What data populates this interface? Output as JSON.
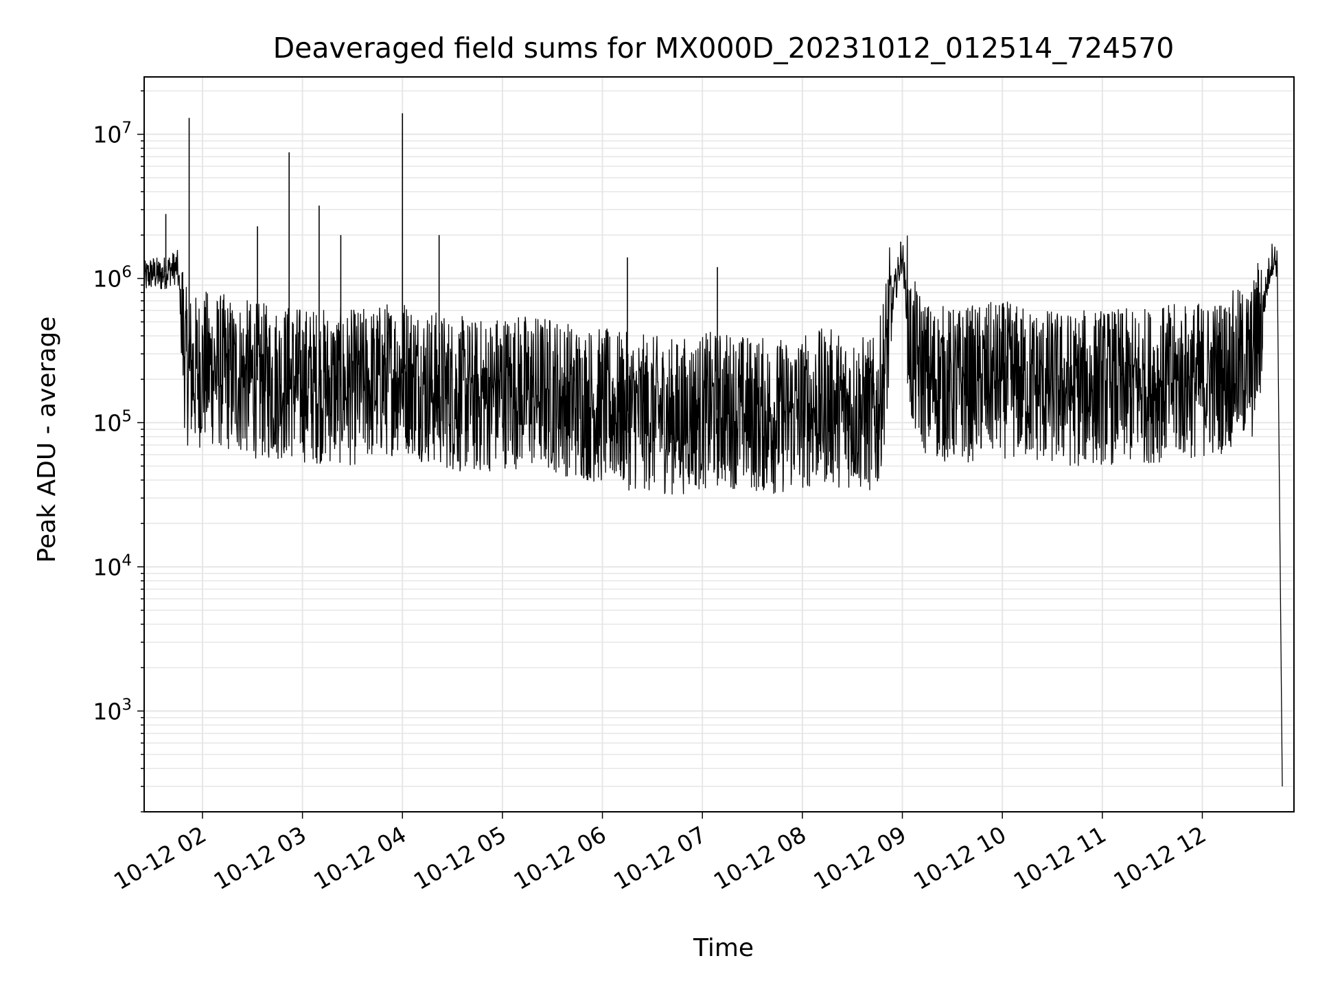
{
  "chart_data": {
    "type": "line",
    "title": "Deaveraged field sums for MX000D_20231012_012514_724570",
    "xlabel": "Time",
    "ylabel": "Peak ADU - average",
    "yscale": "log",
    "ylim": [
      200,
      25000000
    ],
    "xlim": [
      "2023-10-12 01:25",
      "2023-10-12 12:55"
    ],
    "grid": true,
    "grid_color": "#e6e6e6",
    "line_color": "#000000",
    "x_ticks": [
      {
        "value": "2023-10-12 02:00",
        "label": "10-12 02"
      },
      {
        "value": "2023-10-12 03:00",
        "label": "10-12 03"
      },
      {
        "value": "2023-10-12 04:00",
        "label": "10-12 04"
      },
      {
        "value": "2023-10-12 05:00",
        "label": "10-12 05"
      },
      {
        "value": "2023-10-12 06:00",
        "label": "10-12 06"
      },
      {
        "value": "2023-10-12 07:00",
        "label": "10-12 07"
      },
      {
        "value": "2023-10-12 08:00",
        "label": "10-12 08"
      },
      {
        "value": "2023-10-12 09:00",
        "label": "10-12 09"
      },
      {
        "value": "2023-10-12 10:00",
        "label": "10-12 10"
      },
      {
        "value": "2023-10-12 11:00",
        "label": "10-12 11"
      },
      {
        "value": "2023-10-12 12:00",
        "label": "10-12 12"
      }
    ],
    "y_ticks": [
      {
        "value": 1000,
        "base": "10",
        "exp": "3"
      },
      {
        "value": 10000,
        "base": "10",
        "exp": "4"
      },
      {
        "value": 100000,
        "base": "10",
        "exp": "5"
      },
      {
        "value": 1000000,
        "base": "10",
        "exp": "6"
      },
      {
        "value": 10000000,
        "base": "10",
        "exp": "7"
      }
    ],
    "series": [
      {
        "x": [
          "2023-10-12 01:25",
          "2023-10-12 01:30",
          "2023-10-12 01:35",
          "2023-10-12 01:40",
          "2023-10-12 01:45",
          "2023-10-12 01:50",
          "2023-10-12 01:55",
          "2023-10-12 02:00",
          "2023-10-12 02:10",
          "2023-10-12 02:20",
          "2023-10-12 02:30",
          "2023-10-12 02:40",
          "2023-10-12 02:50",
          "2023-10-12 03:00",
          "2023-10-12 03:15",
          "2023-10-12 03:30",
          "2023-10-12 03:45",
          "2023-10-12 04:00",
          "2023-10-12 04:15",
          "2023-10-12 04:30",
          "2023-10-12 04:45",
          "2023-10-12 05:00",
          "2023-10-12 05:15",
          "2023-10-12 05:30",
          "2023-10-12 05:45",
          "2023-10-12 06:00",
          "2023-10-12 06:15",
          "2023-10-12 06:30",
          "2023-10-12 06:45",
          "2023-10-12 07:00",
          "2023-10-12 07:15",
          "2023-10-12 07:30",
          "2023-10-12 07:45",
          "2023-10-12 08:00",
          "2023-10-12 08:15",
          "2023-10-12 08:30",
          "2023-10-12 08:45",
          "2023-10-12 08:55",
          "2023-10-12 09:00",
          "2023-10-12 09:05",
          "2023-10-12 09:15",
          "2023-10-12 09:30",
          "2023-10-12 09:45",
          "2023-10-12 10:00",
          "2023-10-12 10:15",
          "2023-10-12 10:30",
          "2023-10-12 10:45",
          "2023-10-12 11:00",
          "2023-10-12 11:15",
          "2023-10-12 11:30",
          "2023-10-12 11:45",
          "2023-10-12 12:00",
          "2023-10-12 12:10",
          "2023-10-12 12:20",
          "2023-10-12 12:30",
          "2023-10-12 12:35",
          "2023-10-12 12:40",
          "2023-10-12 12:42",
          "2023-10-12 12:45",
          "2023-10-12 12:48"
        ],
        "y": [
          1000000,
          1100000,
          1050000,
          1150000,
          1200000,
          250000,
          220000,
          240000,
          230000,
          210000,
          200000,
          190000,
          195000,
          185000,
          180000,
          175000,
          190000,
          220000,
          180000,
          160000,
          150000,
          170000,
          165000,
          160000,
          140000,
          130000,
          120000,
          115000,
          110000,
          120000,
          125000,
          115000,
          110000,
          120000,
          130000,
          120000,
          110000,
          800000,
          1500000,
          300000,
          200000,
          180000,
          190000,
          200000,
          185000,
          175000,
          170000,
          180000,
          175000,
          185000,
          190000,
          200000,
          210000,
          240000,
          260000,
          500000,
          1100000,
          1400000,
          1300000,
          300
        ],
        "spikes": [
          {
            "x": "2023-10-12 01:52",
            "y": 13000000
          },
          {
            "x": "2023-10-12 02:52",
            "y": 7500000
          },
          {
            "x": "2023-10-12 03:10",
            "y": 3200000
          },
          {
            "x": "2023-10-12 04:00",
            "y": 14000000
          },
          {
            "x": "2023-10-12 01:38",
            "y": 2800000
          },
          {
            "x": "2023-10-12 02:33",
            "y": 2300000
          },
          {
            "x": "2023-10-12 03:23",
            "y": 2000000
          },
          {
            "x": "2023-10-12 04:22",
            "y": 2000000
          },
          {
            "x": "2023-10-12 06:15",
            "y": 1400000
          },
          {
            "x": "2023-10-12 07:09",
            "y": 1200000
          },
          {
            "x": "2023-10-12 08:59",
            "y": 1800000
          }
        ]
      }
    ]
  }
}
